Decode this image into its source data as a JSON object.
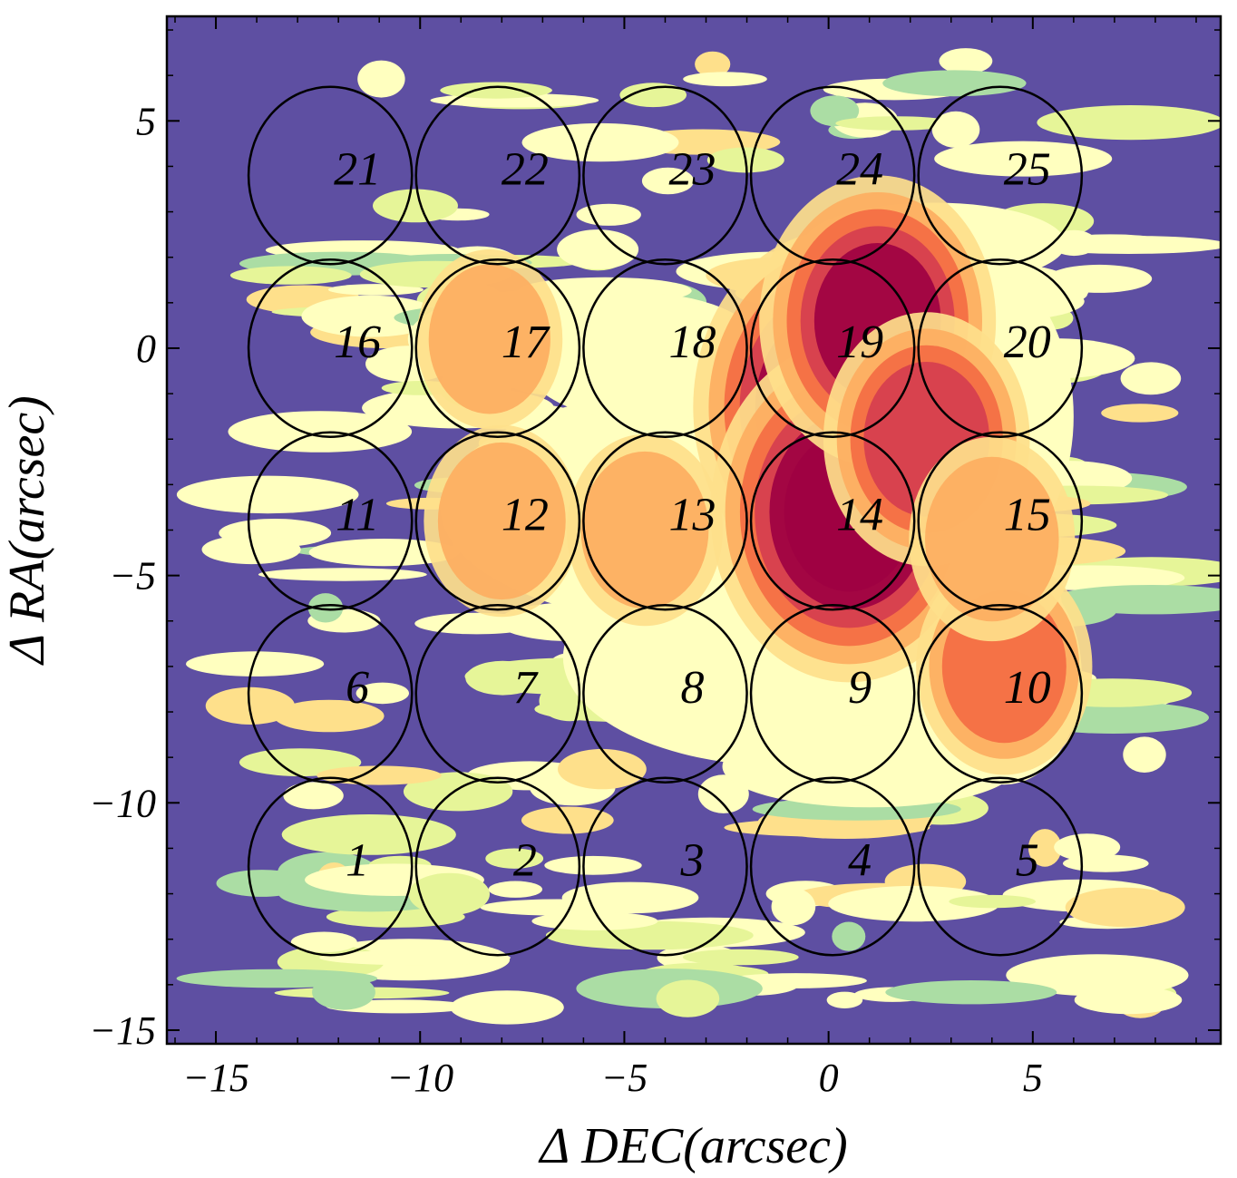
{
  "chart_data": {
    "type": "heatmap",
    "title": "",
    "xlabel": "Δ DEC(arcsec)",
    "ylabel": "Δ RA(arcsec)",
    "xlim": [
      -16.2,
      9.6
    ],
    "ylim": [
      -15.3,
      7.3
    ],
    "x_ticks": [
      -15,
      -10,
      -5,
      0,
      5
    ],
    "x_tick_labels": [
      "−15",
      "−10",
      "−5",
      "0",
      "5"
    ],
    "y_ticks": [
      -15,
      -10,
      -5,
      0,
      5
    ],
    "y_tick_labels": [
      "−15",
      "−10",
      "−5",
      "0",
      "5"
    ],
    "grid": false,
    "colormap": [
      "#5e4fa2",
      "#66c2a5",
      "#abdda4",
      "#e6f598",
      "#ffffbf",
      "#fee08b",
      "#fdae61",
      "#f46d43",
      "#d53e4f",
      "#9e0142"
    ],
    "background_color": "#5e4fa2",
    "emission_peaks": [
      {
        "x": 0.2,
        "y": -1.3,
        "level": 1.0
      },
      {
        "x": 0.5,
        "y": -3.6,
        "level": 0.95
      },
      {
        "x": 1.2,
        "y": 0.6,
        "level": 0.75
      },
      {
        "x": 2.4,
        "y": -2.0,
        "level": 0.6
      },
      {
        "x": 4.3,
        "y": -7.0,
        "level": 0.45
      },
      {
        "x": 4.0,
        "y": -4.2,
        "level": 0.4
      },
      {
        "x": -8.0,
        "y": -3.8,
        "level": 0.35
      },
      {
        "x": -4.5,
        "y": -4.0,
        "level": 0.35
      },
      {
        "x": -8.3,
        "y": 0.2,
        "level": 0.3
      }
    ],
    "fibers": [
      {
        "id": "1",
        "x": -12.2,
        "y": -11.4
      },
      {
        "id": "2",
        "x": -8.1,
        "y": -11.4
      },
      {
        "id": "3",
        "x": -4.0,
        "y": -11.4
      },
      {
        "id": "4",
        "x": 0.1,
        "y": -11.4
      },
      {
        "id": "5",
        "x": 4.2,
        "y": -11.4
      },
      {
        "id": "6",
        "x": -12.2,
        "y": -7.6
      },
      {
        "id": "7",
        "x": -8.1,
        "y": -7.6
      },
      {
        "id": "8",
        "x": -4.0,
        "y": -7.6
      },
      {
        "id": "9",
        "x": 0.1,
        "y": -7.6
      },
      {
        "id": "10",
        "x": 4.2,
        "y": -7.6
      },
      {
        "id": "11",
        "x": -12.2,
        "y": -3.8
      },
      {
        "id": "12",
        "x": -8.1,
        "y": -3.8
      },
      {
        "id": "13",
        "x": -4.0,
        "y": -3.8
      },
      {
        "id": "14",
        "x": 0.1,
        "y": -3.8
      },
      {
        "id": "15",
        "x": 4.2,
        "y": -3.8
      },
      {
        "id": "16",
        "x": -12.2,
        "y": 0.0
      },
      {
        "id": "17",
        "x": -8.1,
        "y": 0.0
      },
      {
        "id": "18",
        "x": -4.0,
        "y": 0.0
      },
      {
        "id": "19",
        "x": 0.1,
        "y": 0.0
      },
      {
        "id": "20",
        "x": 4.2,
        "y": 0.0
      },
      {
        "id": "21",
        "x": -12.2,
        "y": 3.8
      },
      {
        "id": "22",
        "x": -8.1,
        "y": 3.8
      },
      {
        "id": "23",
        "x": -4.0,
        "y": 3.8
      },
      {
        "id": "24",
        "x": 0.1,
        "y": 3.8
      },
      {
        "id": "25",
        "x": 4.2,
        "y": 3.8
      }
    ],
    "fiber_radius_x": 2.0,
    "fiber_radius_y": 1.95
  }
}
